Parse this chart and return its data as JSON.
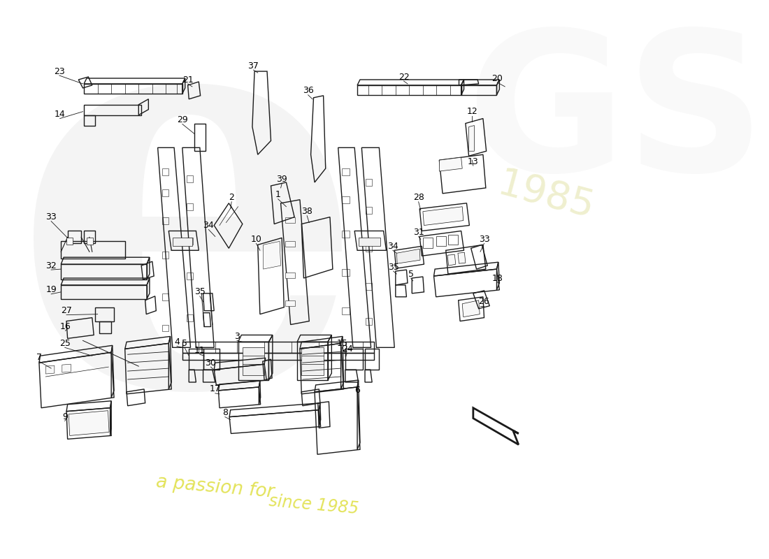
{
  "bg_color": "#ffffff",
  "line_color": "#1a1a1a",
  "label_color": "#000000",
  "wm_color": "#d4d400",
  "wm_text1": "a passion for",
  "wm_text2": "since 1985",
  "figsize": [
    11.0,
    8.0
  ],
  "dpi": 100
}
